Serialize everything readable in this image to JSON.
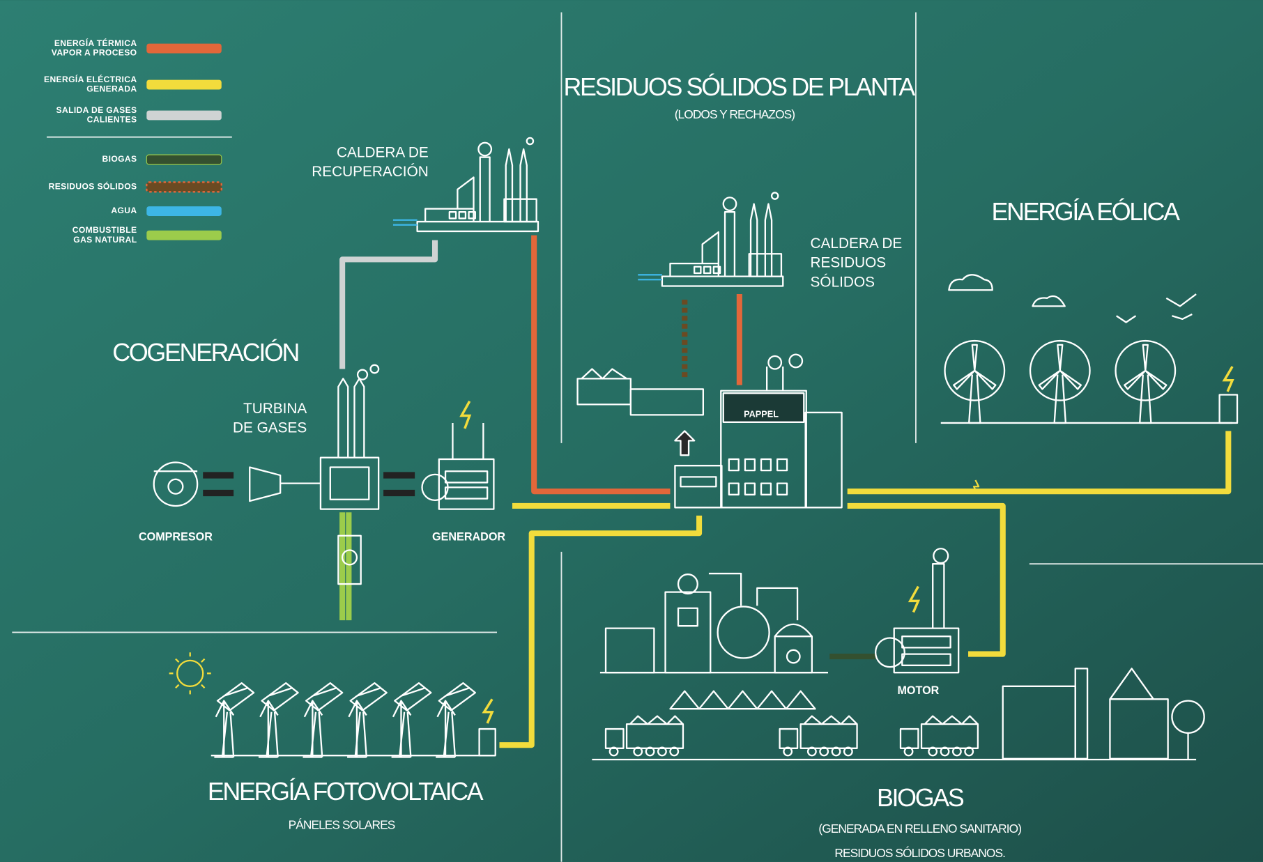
{
  "legend": [
    {
      "lines": [
        "ENERGÍA TÉRMICA",
        "VAPOR A PROCESO"
      ],
      "color": "#e2673a"
    },
    {
      "lines": [
        "ENERGÍA ELÉCTRICA",
        "GENERADA"
      ],
      "color": "#f2dc3c"
    },
    {
      "lines": [
        "SALIDA DE GASES",
        "CALIENTES"
      ],
      "color": "#cfd3d3"
    },
    {
      "lines": [
        "BIOGAS"
      ],
      "color": "#34502f"
    },
    {
      "lines": [
        "RESIDUOS SÓLIDOS"
      ],
      "color": "#6b4a22"
    },
    {
      "lines": [
        "AGUA"
      ],
      "color": "#3db6e6"
    },
    {
      "lines": [
        "COMBUSTIBLE",
        "GAS NATURAL"
      ],
      "color": "#9ccc4b"
    }
  ],
  "sections": {
    "residuos": {
      "title": "RESIDUOS SÓLIDOS DE PLANTA",
      "subtitle": "(LODOS Y RECHAZOS)"
    },
    "eolica": {
      "title": "ENERGÍA EÓLICA"
    },
    "cogeneracion": {
      "title": "COGENERACIÓN"
    },
    "fotovoltaica": {
      "title": "ENERGÍA FOTOVOLTAICA",
      "subtitle": "PÁNELES SOLARES"
    },
    "biogas": {
      "title": "BIOGAS",
      "subtitle": "(GENERADA EN RELLENO SANITARIO)",
      "note": "RESIDUOS SÓLIDOS URBANOS."
    }
  },
  "labels": {
    "caldera_recuperacion": [
      "CALDERA DE",
      "RECUPERACIÓN"
    ],
    "caldera_residuos": [
      "CALDERA DE",
      "RESIDUOS",
      "SÓLIDOS"
    ],
    "turbina": [
      "TURBINA",
      "DE GASES"
    ],
    "compresor": "COMPRESOR",
    "generador": "GENERADOR",
    "motor": "MOTOR",
    "logo": "PAPPEL"
  }
}
